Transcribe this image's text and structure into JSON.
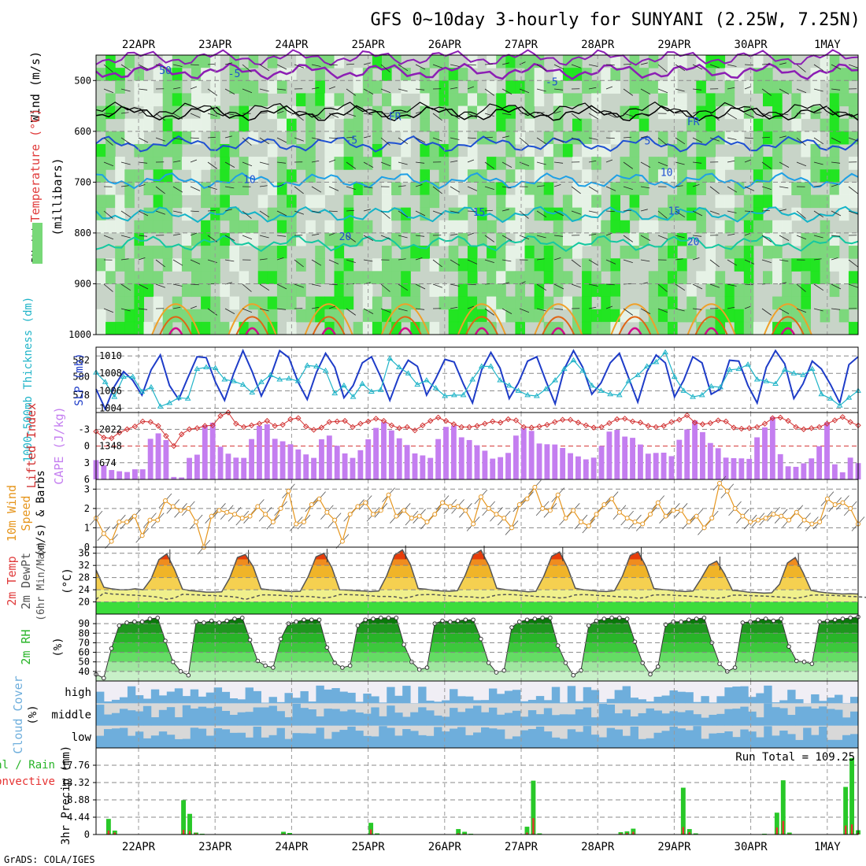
{
  "title": "GFS 0~10day 3-hourly for SUNYANI (2.25W, 7.25N)",
  "credit": "GrADS: COLA/IGES",
  "run_total_label": "Run Total = 109.25",
  "dates": [
    "22APR",
    "23APR",
    "24APR",
    "25APR",
    "26APR",
    "27APR",
    "28APR",
    "29APR",
    "30APR",
    "1MAY"
  ],
  "colors": {
    "rh_light": "#e8f3e8",
    "rh_mid": "#c8d4c8",
    "rh_green": "#78d878",
    "rh_bright": "#19e619",
    "temp_purple": "#8c1eb4",
    "temp_black": "#000000",
    "temp_blue": "#1e50d2",
    "temp_sky": "#1ea0e6",
    "temp_cyan": "#14b4c8",
    "temp_teal": "#14c8a0",
    "temp_orange": "#f0a028",
    "temp_darkorange": "#e06414",
    "temp_magenta": "#d20a8c",
    "slp": "#1e3cc8",
    "thickness": "#20b4c8",
    "cape": "#c47ef0",
    "lifted": "#d23232",
    "wind": "#e6961e",
    "tmax": "#e63c0a",
    "tfill": "#f0b428",
    "dewfill": "#f0f08c",
    "dew_green": "#3cdc3c",
    "rh2m": "#189618",
    "cloud": "#6eaedc",
    "precip_total": "#28c828",
    "precip_conv": "#e63232",
    "axis_red": "#e03c3c",
    "axis_orange": "#e6961e",
    "axis_purple": "#c47ef0",
    "axis_cyan": "#20b4c8",
    "axis_green": "#28b428",
    "axis_blue": "#6eaedc"
  },
  "chart_data": [
    {
      "panel": "upper-air",
      "type": "heatmap",
      "ylabel_parts": [
        "RH (%)",
        "Temperature (°C)",
        "Wind (m/s)"
      ],
      "ylabel_unit": "(millibars)",
      "y_ticks": [
        500,
        600,
        700,
        800,
        900,
        1000
      ],
      "ylim": [
        450,
        1000
      ],
      "contour_labels": [
        {
          "text": "-5",
          "day": 1.25,
          "p": 493
        },
        {
          "text": "-5",
          "day": 5.4,
          "p": 510
        },
        {
          "text": "FR",
          "day": 3.35,
          "p": 578
        },
        {
          "text": "FR",
          "day": 7.25,
          "p": 588
        },
        {
          "text": "-5",
          "day": 2.78,
          "p": 624
        },
        {
          "text": "5",
          "day": 6.65,
          "p": 626
        },
        {
          "text": "10",
          "day": 1.45,
          "p": 702
        },
        {
          "text": "10",
          "day": 6.9,
          "p": 688
        },
        {
          "text": "15",
          "day": 4.45,
          "p": 766
        },
        {
          "text": "15",
          "day": 7.0,
          "p": 764
        },
        {
          "text": "20",
          "day": 2.7,
          "p": 814
        },
        {
          "text": "20",
          "day": 7.25,
          "p": 824
        },
        {
          "text": "50",
          "day": 0.35,
          "p": 487
        }
      ],
      "isotherms_c": [
        -10,
        0,
        -5,
        5,
        10,
        15,
        20
      ]
    },
    {
      "panel": "pressure",
      "type": "line",
      "ylabel_left": "1000-500mb Thickness (dm)",
      "ylabel_right": "SLP (mb)",
      "y_ticks_left": [
        578,
        580,
        582
      ],
      "y_ticks_right": [
        1004,
        1006,
        1008,
        1010
      ],
      "ylim_slp": [
        1003.5,
        1011
      ],
      "slp": [
        1006.2,
        1003.9,
        1006.5,
        1008.2,
        1007.2,
        1005.5,
        1008.4,
        1010.1,
        1006.6,
        1005.0,
        1007.5,
        1009.9,
        1009.8,
        1007.0,
        1004.9,
        1008.0,
        1010.6,
        1008.2,
        1005.4,
        1007.6,
        1010.6,
        1009.8,
        1007.0,
        1005.0,
        1008.1,
        1010.3,
        1008.7,
        1005.2,
        1006.6,
        1009.2,
        1009.9,
        1007.6,
        1004.9,
        1007.7,
        1009.5,
        1008.8,
        1005.5,
        1007.4,
        1009.6,
        1009.3,
        1006.8,
        1004.6,
        1008.4,
        1010.4,
        1008.6,
        1005.1,
        1006.9,
        1009.4,
        1009.9,
        1007.1,
        1004.5,
        1008.5,
        1010.6,
        1008.7,
        1005.6,
        1006.9,
        1009.2,
        1010.3,
        1007.5,
        1004.7,
        1008.2,
        1010.1,
        1009.2,
        1005.3,
        1007.2,
        1009.9,
        1009.2,
        1005.6,
        1006.2,
        1009.5,
        1009.4,
        1006.6,
        1004.6,
        1008.7,
        1010.6,
        1009.1,
        1005.1,
        1006.8,
        1009.4,
        1008.5,
        1006.7,
        1004.6,
        1009.0,
        1009.9
      ],
      "thickness": [
        1008.1,
        1007.0,
        1005.3,
        1007.6,
        1007.6,
        1005.9,
        1006.4,
        1004.2,
        1004.6,
        1005.2,
        1005.1,
        1008.5,
        1008.7,
        1008.6,
        1007.3,
        1007.1,
        1006.7,
        1005.8,
        1007.0,
        1007.8,
        1007.3,
        1007.4,
        1007.1,
        1008.9,
        1008.8,
        1008.3,
        1005.7,
        1006.6,
        1005.3,
        1006.8,
        1005.9,
        1006.1,
        1009.7,
        1008.7,
        1008.0,
        1006.7,
        1007.2,
        1006.3,
        1005.4,
        1005.5,
        1005.5,
        1007.3,
        1008.8,
        1008.8,
        1007.2,
        1006.6,
        1006.0,
        1005.5,
        1005.4,
        1006.2,
        1007.2,
        1008.5,
        1009.5,
        1008.3,
        1006.6,
        1006.0,
        1005.6,
        1005.5,
        1007.1,
        1007.8,
        1008.8,
        1009.3,
        1010.4,
        1007.6,
        1006.0,
        1005.3,
        1005.5,
        1006.5,
        1006.4,
        1008.4,
        1008.5,
        1009.0,
        1007.3,
        1007.1,
        1006.8,
        1008.4,
        1008.0,
        1007.8,
        1008.5,
        1005.6,
        1005.1,
        1004.3,
        1005.2,
        1006.0
      ]
    },
    {
      "panel": "stability",
      "type": "bar",
      "ylabel_left": "Lifted Index",
      "ylabel_right": "CAPE (J/kg)",
      "y_ticks_left": [
        -3,
        0,
        3,
        6
      ],
      "y_ticks_right": [
        674,
        1348,
        2022
      ],
      "ylim_cape": [
        0,
        2700
      ],
      "cape": [
        780,
        570,
        380,
        330,
        300,
        410,
        410,
        1640,
        1860,
        1590,
        100,
        80,
        870,
        1000,
        2190,
        2290,
        1320,
        1040,
        880,
        870,
        1630,
        2160,
        2230,
        1640,
        1540,
        1420,
        1210,
        1010,
        870,
        1620,
        1770,
        1360,
        1050,
        870,
        1180,
        1620,
        2080,
        2310,
        1980,
        1660,
        1390,
        1050,
        970,
        870,
        1630,
        2120,
        2170,
        1700,
        1590,
        1380,
        1160,
        840,
        900,
        1070,
        1770,
        2070,
        1960,
        1450,
        1420,
        1410,
        1270,
        1060,
        930,
        810,
        880,
        1350,
        1930,
        2000,
        1730,
        1680,
        1410,
        1040,
        1070,
        1080,
        940,
        1600,
        2020,
        2380,
        1910,
        1470,
        1260,
        880,
        860,
        850,
        830,
        1700,
        2100,
        2520,
        1020,
        530,
        510,
        650,
        850,
        1340,
        2300,
        610,
        290,
        880,
        660
      ],
      "lifted_index": [
        -2.6,
        -1.5,
        -1.4,
        -2.4,
        -3.0,
        -3.5,
        -4.4,
        -4.3,
        -3.6,
        -1.8,
        0.0,
        -2.1,
        -3.0,
        -3.2,
        -3.6,
        -3.7,
        -5.4,
        -6.0,
        -4.0,
        -3.4,
        -3.7,
        -4.0,
        -4.5,
        -3.6,
        -3.8,
        -4.8,
        -5.0,
        -3.5,
        -2.9,
        -3.3,
        -4.3,
        -4.4,
        -4.5,
        -3.4,
        -4.0,
        -4.4,
        -4.9,
        -4.5,
        -3.7,
        -3.2,
        -3.4,
        -2.8,
        -3.7,
        -4.5,
        -5.1,
        -4.5,
        -3.9,
        -3.4,
        -3.4,
        -3.6,
        -4.0,
        -4.4,
        -4.2,
        -4.8,
        -4.6,
        -3.4,
        -3.3,
        -3.5,
        -3.8,
        -4.3,
        -4.7,
        -4.7,
        -4.2,
        -3.7,
        -3.3,
        -3.4,
        -4.1,
        -4.8,
        -4.9,
        -4.4,
        -4.2,
        -3.6,
        -3.4,
        -3.6,
        -4.3,
        -4.7,
        -5.5,
        -4.2,
        -3.9,
        -4.1,
        -4.6,
        -4.4,
        -3.3,
        -3.1,
        -3.2,
        -3.4,
        -4.0,
        -5.0,
        -5.1,
        -4.5,
        -3.4,
        -3.0,
        -3.2,
        -3.4,
        -4.0,
        -4.6,
        -5.2,
        -4.3,
        -3.7
      ]
    },
    {
      "panel": "wind10m",
      "type": "line",
      "ylabel": "10m Wind Speed (m/s) & Barbs",
      "y_ticks": [
        0,
        1,
        2,
        3
      ],
      "ylim": [
        0,
        3.5
      ],
      "speed": [
        1.5,
        0.7,
        0.3,
        1.3,
        1.3,
        1.6,
        0.6,
        1.4,
        1.4,
        2.4,
        2.1,
        1.9,
        2.0,
        1.3,
        0.0,
        1.6,
        1.9,
        1.8,
        1.7,
        1.5,
        1.6,
        2.1,
        1.7,
        1.3,
        2.0,
        2.9,
        1.2,
        1.3,
        2.2,
        2.5,
        1.8,
        1.4,
        0.3,
        1.7,
        2.1,
        2.3,
        1.7,
        1.9,
        2.7,
        1.6,
        1.9,
        1.5,
        1.6,
        1.3,
        1.7,
        2.3,
        2.1,
        2.1,
        1.9,
        1.2,
        2.6,
        2.0,
        1.7,
        1.5,
        1.0,
        2.2,
        2.5,
        3.1,
        2.0,
        1.9,
        2.7,
        1.5,
        1.9,
        1.3,
        1.1,
        1.7,
        2.2,
        2.5,
        1.8,
        1.5,
        1.3,
        1.2,
        1.7,
        2.3,
        1.6,
        1.9,
        1.9,
        1.3,
        1.6,
        1.0,
        1.5,
        3.3,
        2.9,
        2.0,
        1.6,
        1.3,
        1.4,
        1.5,
        1.7,
        1.6,
        1.4,
        1.8,
        1.4,
        1.2,
        1.3,
        2.5,
        2.2,
        2.3,
        2.0,
        1.2
      ]
    },
    {
      "panel": "temperature2m",
      "type": "area",
      "ylabel": "2m Temp 2m DewPt (6hr Min/Max) (°C)",
      "y_ticks": [
        20,
        24,
        28,
        32,
        36
      ],
      "ylim": [
        16,
        38
      ],
      "temp": [
        30.5,
        24.8,
        24.3,
        24.0,
        24.0,
        24.3,
        24.0,
        27.5,
        33.9,
        35.8,
        30.6,
        24.2,
        23.7,
        23.5,
        23.2,
        23.2,
        23.3,
        27.8,
        34.6,
        35.6,
        31.6,
        24.3,
        24.0,
        23.8,
        23.5,
        23.4,
        23.5,
        28.3,
        34.8,
        36.0,
        31.4,
        24.0,
        23.9,
        23.7,
        23.6,
        23.4,
        23.6,
        28.6,
        35.4,
        37.1,
        32.4,
        24.4,
        24.2,
        23.8,
        23.6,
        23.5,
        23.7,
        28.8,
        35.5,
        37.0,
        32.0,
        24.5,
        24.1,
        23.8,
        23.6,
        23.3,
        23.5,
        28.5,
        35.0,
        36.4,
        31.4,
        24.5,
        24.0,
        23.8,
        23.5,
        23.4,
        23.7,
        28.5,
        35.3,
        36.5,
        31.6,
        24.4,
        24.1,
        23.9,
        23.6,
        23.4,
        23.6,
        27.6,
        32.1,
        33.4,
        29.2,
        23.8,
        23.6,
        23.2,
        23.1,
        22.9,
        23.0,
        25.8,
        32.8,
        34.6,
        29.6,
        23.8,
        23.3,
        23.0,
        22.8,
        22.6,
        22.7,
        22.6
      ],
      "dewpoint": [
        20.8,
        23.0,
        22.6,
        22.5,
        22.3,
        22.2,
        22.0,
        21.8,
        21.5,
        20.9,
        21.3,
        22.5,
        22.4,
        22.3,
        22.1,
        22.1,
        21.9,
        21.8,
        21.5,
        20.8,
        21.5,
        22.3,
        22.3,
        22.2,
        22.1,
        21.9,
        21.8,
        21.8,
        21.6,
        21.3,
        21.6,
        22.4,
        22.4,
        22.3,
        22.2,
        22.0,
        21.8,
        21.8,
        21.7,
        21.2,
        21.6,
        22.3,
        22.4,
        22.4,
        22.2,
        22.0,
        21.8,
        21.7,
        21.6,
        21.3,
        21.6,
        22.3,
        22.4,
        22.4,
        22.2,
        22.0,
        21.8,
        21.7,
        21.6,
        21.3,
        21.5,
        22.3,
        22.4,
        22.3,
        22.1,
        22.0,
        21.8,
        21.6,
        21.6,
        21.2,
        21.5,
        22.3,
        22.3,
        22.3,
        22.1,
        22.0,
        21.8,
        21.6,
        21.4,
        21.2,
        21.5,
        22.2,
        22.2,
        22.1,
        22.0,
        21.9,
        21.8,
        21.6,
        21.5,
        21.2,
        21.6,
        22.2,
        22.3,
        22.2,
        22.1,
        22.0,
        21.8,
        21.7,
        21.5
      ]
    },
    {
      "panel": "rh2m",
      "type": "area",
      "ylabel": "2m RH (%)",
      "y_ticks": [
        40,
        50,
        60,
        70,
        80,
        90
      ],
      "ylim": [
        30,
        100
      ],
      "rh": [
        37,
        33,
        64,
        88,
        91,
        92,
        92,
        95,
        96,
        72,
        50,
        40,
        36,
        92,
        91,
        93,
        91,
        93,
        95,
        96,
        73,
        51,
        46,
        44,
        74,
        90,
        92,
        94,
        94,
        94,
        65,
        49,
        44,
        46,
        88,
        94,
        95,
        96,
        96,
        96,
        68,
        50,
        42,
        44,
        90,
        93,
        92,
        93,
        94,
        94,
        74,
        49,
        39,
        41,
        86,
        92,
        94,
        95,
        96,
        96,
        67,
        49,
        36,
        41,
        88,
        93,
        95,
        96,
        96,
        95,
        71,
        49,
        37,
        45,
        89,
        92,
        92,
        94,
        95,
        96,
        70,
        48,
        40,
        44,
        91,
        92,
        94,
        95,
        93,
        95,
        66,
        51,
        50,
        48,
        92,
        93,
        94,
        95,
        96,
        97
      ]
    },
    {
      "panel": "cloud",
      "type": "heatmap",
      "ylabel": "Cloud Cover (%)",
      "rows": [
        "high",
        "middle",
        "low"
      ]
    },
    {
      "panel": "precip",
      "type": "bar",
      "ylabel_left": "Total / Rain",
      "ylabel_left2": "Convective",
      "ylabel_right": "3hr Precip (mm)",
      "y_ticks": [
        0,
        4.44,
        8.88,
        13.32,
        17.76
      ],
      "ylim": [
        0,
        22.2
      ],
      "total": [
        0,
        0,
        4.0,
        1.0,
        0,
        0,
        0,
        0,
        0,
        0,
        0,
        0,
        0,
        0,
        8.8,
        5.3,
        0.5,
        0.2,
        0,
        0,
        0,
        0,
        0,
        0,
        0,
        0,
        0,
        0,
        0,
        0,
        0.7,
        0.4,
        0,
        0,
        0,
        0,
        0,
        0,
        0,
        0,
        0,
        0,
        0,
        0,
        3.0,
        0.3,
        0,
        0,
        0,
        0,
        0,
        0,
        0,
        0,
        0,
        0,
        0,
        0,
        1.4,
        0.7,
        0.2,
        0,
        0,
        0,
        0,
        0,
        0,
        0,
        0,
        2.0,
        13.8,
        0.3,
        0,
        0,
        0,
        0,
        0,
        0,
        0,
        0,
        0,
        0,
        0,
        0,
        0.6,
        0.8,
        1.5,
        0,
        0,
        0,
        0,
        0,
        0,
        0,
        12.0,
        1.4,
        0.3,
        0,
        0,
        0,
        0,
        0,
        0,
        0,
        0,
        0,
        0,
        0.2,
        0,
        5.6,
        13.9,
        0.5,
        0,
        0,
        0,
        0,
        0,
        0,
        0,
        0,
        12.2,
        19.6,
        1.1
      ],
      "convective": [
        0,
        0,
        1.0,
        0.5,
        0,
        0,
        0,
        0,
        0,
        0,
        0,
        0,
        0,
        0,
        1.2,
        0.9,
        0.3,
        0.1,
        0,
        0,
        0,
        0,
        0,
        0,
        0,
        0,
        0,
        0,
        0,
        0,
        0.2,
        0.1,
        0,
        0,
        0,
        0,
        0,
        0,
        0,
        0,
        0,
        0,
        0,
        0,
        1.3,
        0.1,
        0,
        0,
        0,
        0,
        0,
        0,
        0,
        0,
        0,
        0,
        0,
        0,
        0.3,
        0.2,
        0.1,
        0,
        0,
        0,
        0,
        0,
        0,
        0,
        0,
        0.5,
        4.2,
        0.1,
        0,
        0,
        0,
        0,
        0,
        0,
        0,
        0,
        0,
        0,
        0,
        0,
        0.3,
        0.4,
        0.7,
        0,
        0,
        0,
        0,
        0,
        0,
        0,
        1.9,
        0.6,
        0.1,
        0,
        0,
        0,
        0,
        0,
        0,
        0,
        0,
        0,
        0,
        0.1,
        0,
        1.8,
        3.5,
        0.2,
        0,
        0,
        0,
        0,
        0,
        0,
        0,
        0,
        2.3,
        2.6,
        0.4
      ]
    }
  ]
}
